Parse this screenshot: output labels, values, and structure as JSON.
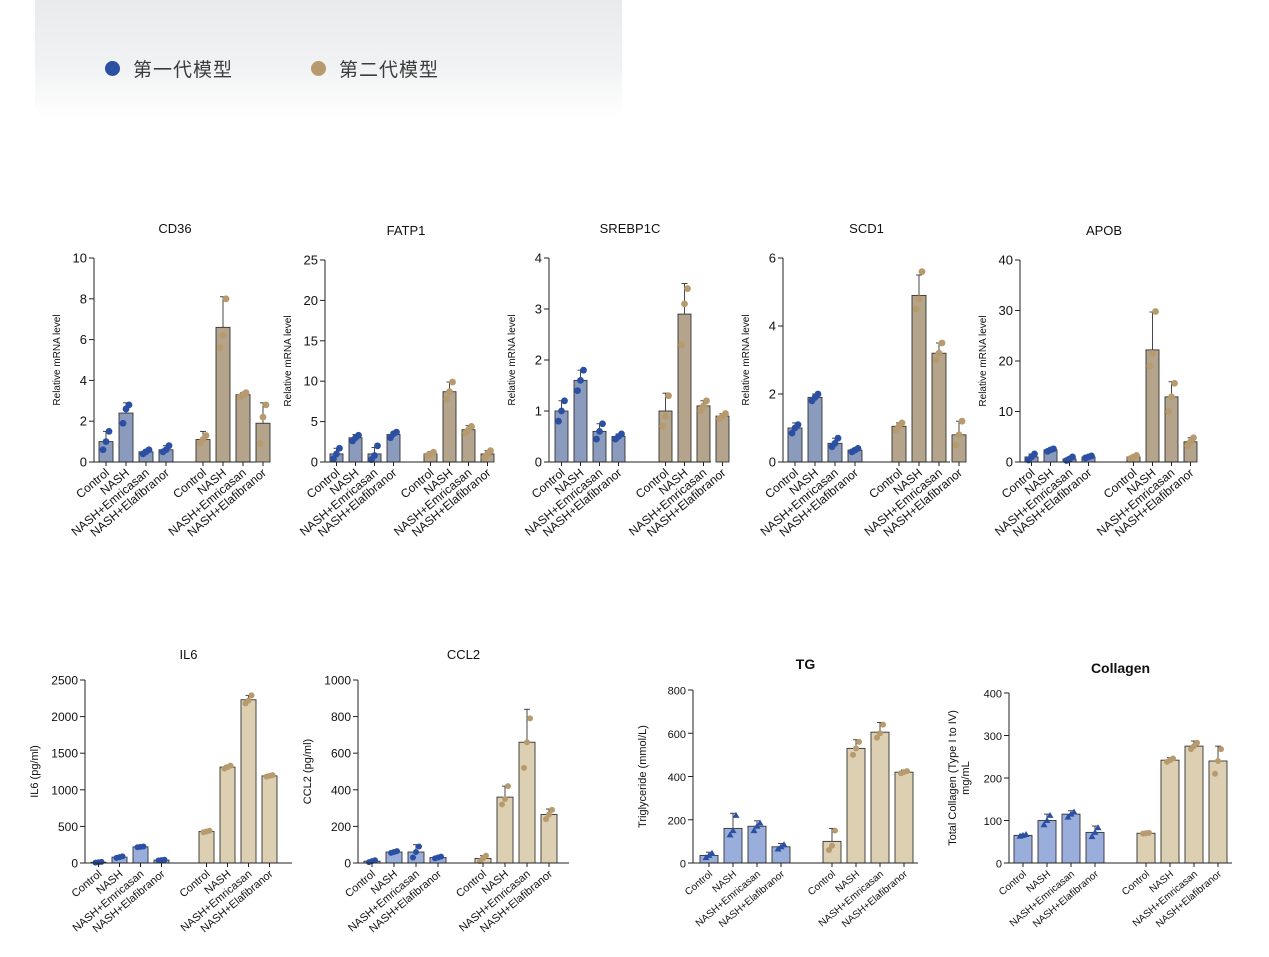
{
  "legend": {
    "gen1_label": "第一代模型",
    "gen2_label": "第二代模型",
    "gen1_color": "#2b50a3",
    "gen2_color": "#b79a6d"
  },
  "colors": {
    "top_gen1_fill": "#8a9bbd",
    "top_gen2_fill": "#b3a48b",
    "top_gen1_dot": "#2b50a3",
    "top_gen2_dot": "#b79a6d",
    "bottom_gen1_fill": "#9aaedb",
    "bottom_gen2_fill": "#ddd0b2",
    "bottom_gen1_dot": "#2b50a3",
    "bottom_gen2_dot": "#b79a6d"
  },
  "chart_data": [
    {
      "type": "bar",
      "title": "CD36",
      "ylabel": "Relative mRNA level",
      "yticks": [
        "0",
        "2",
        "4",
        "6",
        "8",
        "10"
      ],
      "ylim": [
        0,
        10
      ],
      "categories": [
        "Control",
        "NASH",
        "NASH+Emricasan",
        "NASH+Elafibranor",
        "Control",
        "NASH",
        "NASH+Emricasan",
        "NASH+Elafibranor"
      ],
      "groups": [
        "gen1",
        "gen1",
        "gen1",
        "gen1",
        "gen2",
        "gen2",
        "gen2",
        "gen2"
      ],
      "values": [
        1.0,
        2.4,
        0.5,
        0.6,
        1.1,
        6.6,
        3.3,
        1.9
      ],
      "errors": [
        0.5,
        0.5,
        0.1,
        0.2,
        0.4,
        1.5,
        0.1,
        1.0
      ],
      "points": [
        [
          0.6,
          1.0,
          1.5
        ],
        [
          1.9,
          2.6,
          2.8
        ],
        [
          0.4,
          0.5,
          0.6
        ],
        [
          0.5,
          0.6,
          0.8
        ],
        [
          0.9,
          1.1,
          1.3
        ],
        [
          5.6,
          6.2,
          8.0
        ],
        [
          3.2,
          3.3,
          3.4
        ],
        [
          0.9,
          2.2,
          2.8
        ]
      ]
    },
    {
      "type": "bar",
      "title": "FATP1",
      "ylabel": "Relative mRNA level",
      "yticks": [
        "0",
        "5",
        "10",
        "15",
        "20",
        "25"
      ],
      "ylim": [
        0,
        25
      ],
      "categories": [
        "Control",
        "NASH",
        "NASH+Emricasan",
        "NASH+Elafibranor",
        "Control",
        "NASH",
        "NASH+Emricasan",
        "NASH+Elafibranor"
      ],
      "groups": [
        "gen1",
        "gen1",
        "gen1",
        "gen1",
        "gen2",
        "gen2",
        "gen2",
        "gen2"
      ],
      "values": [
        1.0,
        3.0,
        1.0,
        3.4,
        1.0,
        8.7,
        4.0,
        1.0
      ],
      "errors": [
        0.7,
        0.4,
        0.8,
        0.3,
        0.3,
        1.2,
        0.5,
        0.4
      ],
      "points": [
        [
          0.4,
          1.0,
          1.7
        ],
        [
          2.6,
          3.0,
          3.3
        ],
        [
          0.3,
          0.8,
          2.0
        ],
        [
          3.0,
          3.5,
          3.7
        ],
        [
          0.8,
          1.0,
          1.2
        ],
        [
          7.8,
          8.7,
          9.9
        ],
        [
          3.6,
          4.0,
          4.4
        ],
        [
          0.6,
          1.0,
          1.4
        ]
      ]
    },
    {
      "type": "bar",
      "title": "SREBP1C",
      "ylabel": "Relative mRNA level",
      "yticks": [
        "0",
        "1",
        "2",
        "3",
        "4"
      ],
      "ylim": [
        0,
        4
      ],
      "categories": [
        "Control",
        "NASH",
        "NASH+Emricasan",
        "NASH+Elafibranor",
        "Control",
        "NASH",
        "NASH+Emricasan",
        "NASH+Elafibranor"
      ],
      "groups": [
        "gen1",
        "gen1",
        "gen1",
        "gen1",
        "gen2",
        "gen2",
        "gen2",
        "gen2"
      ],
      "values": [
        1.0,
        1.6,
        0.6,
        0.5,
        1.0,
        2.9,
        1.1,
        0.9
      ],
      "errors": [
        0.2,
        0.2,
        0.15,
        0.05,
        0.35,
        0.6,
        0.1,
        0.05
      ],
      "points": [
        [
          0.8,
          1.0,
          1.2
        ],
        [
          1.4,
          1.6,
          1.8
        ],
        [
          0.45,
          0.6,
          0.75
        ],
        [
          0.45,
          0.5,
          0.55
        ],
        [
          0.7,
          0.9,
          1.3
        ],
        [
          2.3,
          3.1,
          3.4
        ],
        [
          1.0,
          1.1,
          1.2
        ],
        [
          0.85,
          0.9,
          0.95
        ]
      ]
    },
    {
      "type": "bar",
      "title": "SCD1",
      "ylabel": "Relative mRNA level",
      "yticks": [
        "0",
        "2",
        "4",
        "6"
      ],
      "ylim": [
        0,
        6
      ],
      "categories": [
        "Control",
        "NASH",
        "NASH+Emricasan",
        "NASH+Elafibranor",
        "Control",
        "NASH",
        "NASH+Emricasan",
        "NASH+Elafibranor"
      ],
      "groups": [
        "gen1",
        "gen1",
        "gen1",
        "gen1",
        "gen2",
        "gen2",
        "gen2",
        "gen2"
      ],
      "values": [
        1.0,
        1.9,
        0.55,
        0.35,
        1.05,
        4.9,
        3.2,
        0.8
      ],
      "errors": [
        0.15,
        0.1,
        0.15,
        0.05,
        0.1,
        0.6,
        0.3,
        0.4
      ],
      "points": [
        [
          0.85,
          1.0,
          1.1
        ],
        [
          1.8,
          1.9,
          2.0
        ],
        [
          0.45,
          0.55,
          0.7
        ],
        [
          0.3,
          0.35,
          0.4
        ],
        [
          0.95,
          1.05,
          1.15
        ],
        [
          4.5,
          4.8,
          5.6
        ],
        [
          3.0,
          3.2,
          3.5
        ],
        [
          0.5,
          0.8,
          1.2
        ]
      ]
    },
    {
      "type": "bar",
      "title": "APOB",
      "ylabel": "Relative mRNA level",
      "yticks": [
        "0",
        "10",
        "20",
        "30",
        "40"
      ],
      "ylim": [
        0,
        40
      ],
      "categories": [
        "Control",
        "NASH",
        "NASH+Emricasan",
        "NASH+Elafibranor",
        "Control",
        "NASH",
        "NASH+Emricasan",
        "NASH+Elafibranor"
      ],
      "groups": [
        "gen1",
        "gen1",
        "gen1",
        "gen1",
        "gen2",
        "gen2",
        "gen2",
        "gen2"
      ],
      "values": [
        1.0,
        2.4,
        0.6,
        1.0,
        1.0,
        22.2,
        12.9,
        4.0
      ],
      "errors": [
        0.6,
        0.3,
        0.4,
        0.2,
        0.3,
        7.5,
        3.0,
        0.8
      ],
      "points": [
        [
          0.4,
          1.0,
          1.6
        ],
        [
          2.1,
          2.4,
          2.6
        ],
        [
          0.3,
          0.6,
          1.0
        ],
        [
          0.8,
          1.0,
          1.2
        ],
        [
          0.7,
          1.0,
          1.3
        ],
        [
          19.0,
          21.5,
          29.8
        ],
        [
          10.0,
          12.9,
          15.6
        ],
        [
          3.2,
          4.0,
          4.8
        ]
      ]
    },
    {
      "type": "bar",
      "title": "IL6",
      "ylabel": "IL6 (pg/ml)",
      "yticks": [
        "0",
        "500",
        "1000",
        "1500",
        "2000",
        "2500"
      ],
      "ylim": [
        0,
        2500
      ],
      "categories": [
        "Control",
        "NASH",
        "NASH+Emricasan",
        "NASH+Elafibranor",
        "Control",
        "NASH",
        "NASH+Emricasan",
        "NASH+Elafibranor"
      ],
      "groups": [
        "gen1",
        "gen1",
        "gen1",
        "gen1",
        "gen2",
        "gen2",
        "gen2",
        "gen2"
      ],
      "values": [
        10,
        80,
        220,
        40,
        430,
        1310,
        2230,
        1190
      ],
      "errors": [
        5,
        10,
        10,
        5,
        15,
        25,
        60,
        15
      ],
      "points": [
        [
          5,
          10,
          15
        ],
        [
          70,
          80,
          90
        ],
        [
          215,
          220,
          225
        ],
        [
          35,
          40,
          45
        ],
        [
          420,
          430,
          440
        ],
        [
          1290,
          1310,
          1330
        ],
        [
          2180,
          2220,
          2290
        ],
        [
          1180,
          1190,
          1200
        ]
      ]
    },
    {
      "type": "bar",
      "title": "CCL2",
      "ylabel": "CCL2 (pg/ml)",
      "yticks": [
        "0",
        "200",
        "400",
        "600",
        "800",
        "1000"
      ],
      "ylim": [
        0,
        1000
      ],
      "categories": [
        "Control",
        "NASH",
        "NASH+Emricasan",
        "NASH+Elafibranor",
        "Control",
        "NASH",
        "NASH+Emricasan",
        "NASH+Elafibranor"
      ],
      "groups": [
        "gen1",
        "gen1",
        "gen1",
        "gen1",
        "gen2",
        "gen2",
        "gen2",
        "gen2"
      ],
      "values": [
        10,
        60,
        60,
        30,
        25,
        360,
        660,
        265
      ],
      "errors": [
        5,
        5,
        40,
        5,
        15,
        60,
        180,
        30
      ],
      "points": [
        [
          5,
          10,
          15
        ],
        [
          55,
          60,
          65
        ],
        [
          30,
          60,
          90
        ],
        [
          25,
          30,
          35
        ],
        [
          10,
          25,
          40
        ],
        [
          320,
          350,
          420
        ],
        [
          520,
          660,
          790
        ],
        [
          240,
          265,
          290
        ]
      ]
    },
    {
      "type": "bar",
      "title": "TG",
      "ylabel": "Triglyceride (mmol/L)",
      "yticks": [
        "0",
        "200",
        "400",
        "600",
        "800"
      ],
      "ylim": [
        0,
        800
      ],
      "categories": [
        "Control",
        "NASH",
        "NASH+Emricasan",
        "NASH+Elafibranor",
        "Control",
        "NASH",
        "NASH+Emricasan",
        "NASH+Elafibranor"
      ],
      "groups": [
        "gen1",
        "gen1",
        "gen1",
        "gen1",
        "gen2",
        "gen2",
        "gen2",
        "gen2"
      ],
      "values": [
        35,
        160,
        170,
        75,
        100,
        530,
        605,
        420
      ],
      "errors": [
        15,
        70,
        25,
        15,
        60,
        40,
        45,
        10
      ],
      "points": [
        [
          25,
          35,
          45
        ],
        [
          130,
          150,
          220
        ],
        [
          150,
          170,
          185
        ],
        [
          65,
          75,
          85
        ],
        [
          60,
          80,
          150
        ],
        [
          500,
          530,
          560
        ],
        [
          580,
          600,
          640
        ],
        [
          415,
          420,
          425
        ]
      ]
    },
    {
      "type": "bar",
      "title": "Collagen",
      "ylabel": "Total Collagen (Type I to IV) mg/mL",
      "yticks": [
        "0",
        "100",
        "200",
        "300",
        "400"
      ],
      "ylim": [
        0,
        400
      ],
      "categories": [
        "Control",
        "NASH",
        "NASH+Emricasan",
        "NASH+Elafibranor",
        "Control",
        "NASH",
        "NASH+Emricasan",
        "NASH+Elafibranor"
      ],
      "groups": [
        "gen1",
        "gen1",
        "gen1",
        "gen1",
        "gen2",
        "gen2",
        "gen2",
        "gen2"
      ],
      "values": [
        65,
        100,
        115,
        72,
        70,
        242,
        275,
        240
      ],
      "errors": [
        3,
        15,
        8,
        15,
        2,
        6,
        12,
        35
      ],
      "points": [
        [
          63,
          65,
          67
        ],
        [
          90,
          100,
          112
        ],
        [
          108,
          115,
          120
        ],
        [
          62,
          72,
          83
        ],
        [
          69,
          70,
          71
        ],
        [
          238,
          242,
          246
        ],
        [
          268,
          275,
          283
        ],
        [
          210,
          240,
          268
        ]
      ]
    }
  ]
}
